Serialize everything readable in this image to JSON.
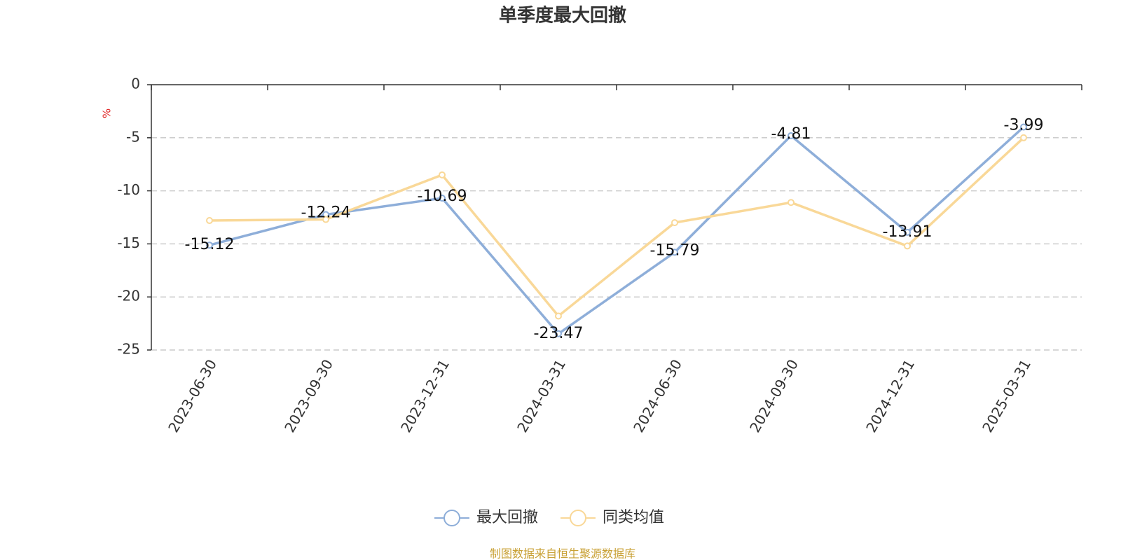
{
  "chart_data": {
    "type": "line",
    "title": "单季度最大回撤",
    "y_label": "%",
    "source": "制图数据来自恒生聚源数据库",
    "categories": [
      "2023-06-30",
      "2023-09-30",
      "2023-12-31",
      "2024-03-31",
      "2024-06-30",
      "2024-09-30",
      "2024-12-31",
      "2025-03-31"
    ],
    "series": [
      {
        "name": "最大回撤",
        "color": "#8eaed9",
        "values": [
          -15.12,
          -12.24,
          -10.69,
          -23.47,
          -15.79,
          -4.81,
          -13.91,
          -3.99
        ],
        "labels": true
      },
      {
        "name": "同类均值",
        "color": "#f9d898",
        "values": [
          -12.8,
          -12.7,
          -8.5,
          -21.8,
          -13.0,
          -11.1,
          -15.2,
          -5.0
        ],
        "labels": false
      }
    ],
    "ylim": [
      -25,
      0
    ],
    "yticks": [
      0,
      -5,
      -10,
      -15,
      -20,
      -25
    ],
    "grid": true,
    "x_axis_position": "top",
    "legend": "bottom"
  }
}
